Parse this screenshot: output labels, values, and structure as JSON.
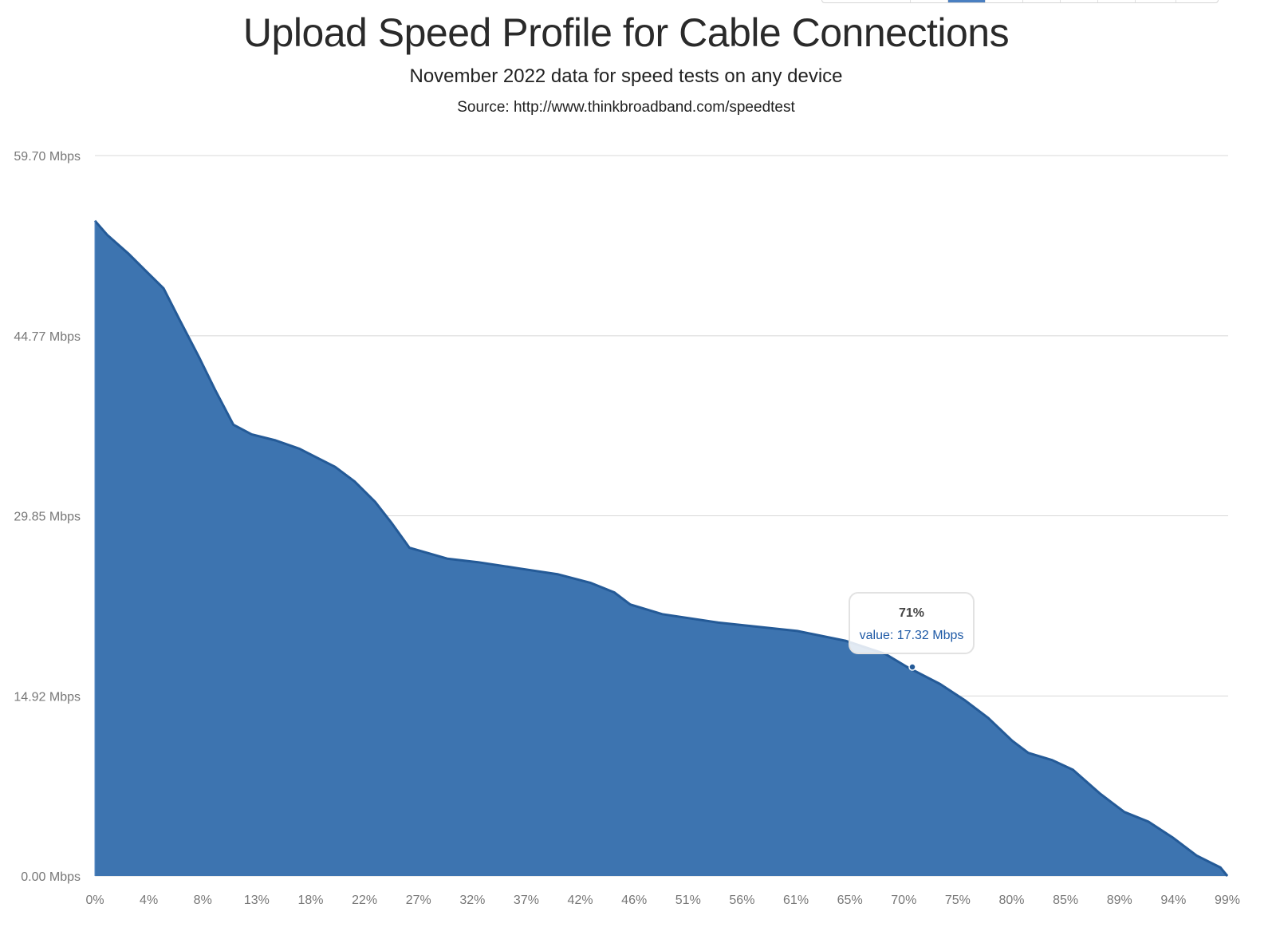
{
  "header": {
    "title": "Upload Speed Profile for Cable Connections",
    "subtitle": "November 2022 data for speed tests on any device",
    "source": "Source: http://www.thinkbroadband.com/speedtest"
  },
  "toolbar": {
    "segments": 9,
    "active_index": 2
  },
  "tooltip": {
    "title": "71%",
    "value_label": "value: 17.32 Mbps"
  },
  "colors": {
    "fill": "#3d74b0",
    "stroke": "#245a97",
    "grid": "#d8d8d8",
    "axis_label": "#777777",
    "tooltip_value": "#1f5aa6"
  },
  "chart_data": {
    "type": "area",
    "title": "Upload Speed Profile for Cable Connections",
    "subtitle": "November 2022 data for speed tests on any device",
    "source": "Source: http://www.thinkbroadband.com/speedtest",
    "xlabel": "",
    "ylabel": "",
    "ylim": [
      0,
      59.7
    ],
    "xlim": [
      0,
      99
    ],
    "grid": true,
    "legend": "none",
    "y_ticks": [
      "0.00 Mbps",
      "14.92 Mbps",
      "29.85 Mbps",
      "44.77 Mbps",
      "59.70 Mbps"
    ],
    "y_tick_values": [
      0,
      14.92,
      29.85,
      44.77,
      59.7
    ],
    "x_ticks": [
      "0%",
      "4%",
      "8%",
      "13%",
      "18%",
      "22%",
      "27%",
      "32%",
      "37%",
      "42%",
      "46%",
      "51%",
      "56%",
      "61%",
      "65%",
      "70%",
      "75%",
      "80%",
      "85%",
      "89%",
      "94%",
      "99%"
    ],
    "series": [
      {
        "name": "value",
        "unit": "Mbps",
        "x": [
          0,
          1.1,
          2.9,
          4.6,
          6.0,
          7.4,
          9.1,
          10.5,
          12.1,
          13.7,
          15.8,
          17.9,
          21.0,
          22.7,
          24.5,
          25.9,
          27.5,
          30.8,
          33.5,
          37.0,
          40.5,
          43.3,
          45.4,
          46.8,
          49.6,
          54.5,
          61.4,
          65.6,
          69.1,
          71.0,
          73.9,
          76.0,
          78.1,
          80.2,
          81.6,
          83.7,
          85.5,
          87.9,
          90.0,
          92.1,
          94.2,
          96.3,
          98.4,
          99.0
        ],
        "values": [
          54.3,
          53.1,
          51.6,
          50.0,
          48.7,
          46.1,
          43.0,
          40.3,
          37.4,
          36.6,
          36.1,
          35.4,
          33.9,
          32.7,
          31.0,
          29.3,
          27.2,
          26.3,
          26.0,
          25.5,
          25.0,
          24.3,
          23.5,
          22.5,
          21.7,
          21.0,
          20.3,
          19.5,
          18.4,
          17.32,
          15.9,
          14.6,
          13.1,
          11.2,
          10.2,
          9.6,
          8.8,
          6.8,
          5.3,
          4.5,
          3.2,
          1.7,
          0.7,
          0.0
        ]
      }
    ],
    "highlighted_point": {
      "x": "71%",
      "value": 17.32
    }
  }
}
